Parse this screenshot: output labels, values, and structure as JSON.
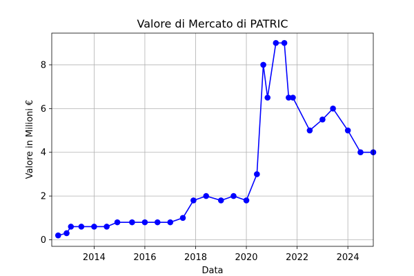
{
  "chart_data": {
    "type": "line",
    "title": "Valore di Mercato di PATRIC",
    "xlabel": "Data",
    "ylabel": "Valore in Milioni €",
    "xlim": [
      "2012-05-01",
      "2025-01-01"
    ],
    "ylim": [
      -0.3,
      9.45
    ],
    "grid": true,
    "x_ticks": [
      "2014",
      "2016",
      "2018",
      "2020",
      "2022",
      "2024"
    ],
    "y_ticks": [
      0,
      2,
      4,
      6,
      8
    ],
    "series": [
      {
        "color": "#0000ff",
        "marker": "circle",
        "points": [
          {
            "x": "2012-08-01",
            "y": 0.2
          },
          {
            "x": "2012-12-01",
            "y": 0.3
          },
          {
            "x": "2013-02-01",
            "y": 0.6
          },
          {
            "x": "2013-07-01",
            "y": 0.6
          },
          {
            "x": "2014-01-01",
            "y": 0.6
          },
          {
            "x": "2014-07-01",
            "y": 0.6
          },
          {
            "x": "2014-12-01",
            "y": 0.8
          },
          {
            "x": "2015-07-01",
            "y": 0.8
          },
          {
            "x": "2016-01-01",
            "y": 0.8
          },
          {
            "x": "2016-07-01",
            "y": 0.8
          },
          {
            "x": "2017-01-01",
            "y": 0.8
          },
          {
            "x": "2017-07-01",
            "y": 1.0
          },
          {
            "x": "2017-12-01",
            "y": 1.8
          },
          {
            "x": "2018-06-01",
            "y": 2.0
          },
          {
            "x": "2019-01-01",
            "y": 1.8
          },
          {
            "x": "2019-07-01",
            "y": 2.0
          },
          {
            "x": "2020-01-01",
            "y": 1.8
          },
          {
            "x": "2020-06-01",
            "y": 3.0
          },
          {
            "x": "2020-09-01",
            "y": 8.0
          },
          {
            "x": "2020-11-01",
            "y": 6.5
          },
          {
            "x": "2021-03-01",
            "y": 9.0
          },
          {
            "x": "2021-07-01",
            "y": 9.0
          },
          {
            "x": "2021-09-01",
            "y": 6.5
          },
          {
            "x": "2021-11-01",
            "y": 6.5
          },
          {
            "x": "2022-07-01",
            "y": 5.0
          },
          {
            "x": "2023-01-01",
            "y": 5.5
          },
          {
            "x": "2023-06-01",
            "y": 6.0
          },
          {
            "x": "2024-01-01",
            "y": 5.0
          },
          {
            "x": "2024-07-01",
            "y": 4.0
          },
          {
            "x": "2025-01-01",
            "y": 4.0
          }
        ]
      }
    ]
  }
}
